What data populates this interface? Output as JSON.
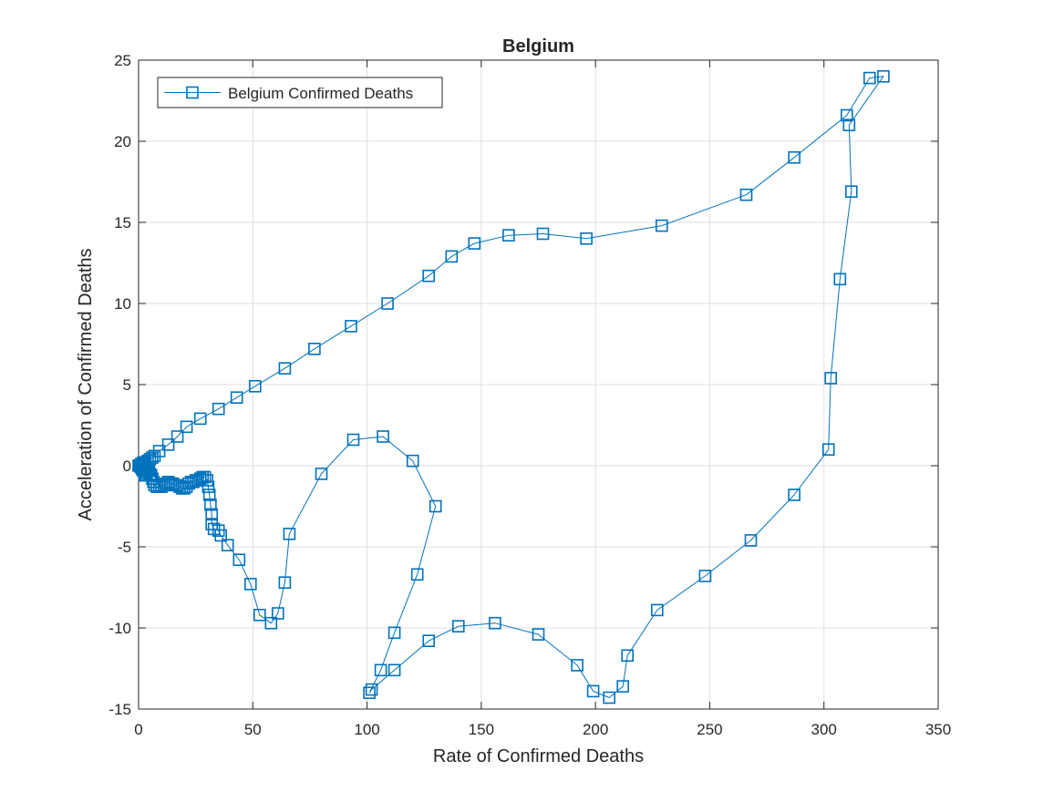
{
  "chart_data": {
    "type": "line",
    "title": "Belgium",
    "xlabel": "Rate of Confirmed Deaths",
    "ylabel": "Acceleration of Confirmed Deaths",
    "xlim": [
      0,
      350
    ],
    "ylim": [
      -15,
      25
    ],
    "xticks": [
      0,
      50,
      100,
      150,
      200,
      250,
      300,
      350
    ],
    "yticks": [
      -15,
      -10,
      -5,
      0,
      5,
      10,
      15,
      20,
      25
    ],
    "xtick_labels": [
      "0",
      "50",
      "100",
      "150",
      "200",
      "250",
      "300",
      "350"
    ],
    "ytick_labels": [
      "-15",
      "-10",
      "-5",
      "0",
      "5",
      "10",
      "15",
      "20",
      "25"
    ],
    "grid": true,
    "legend_position": "top-left",
    "series": [
      {
        "name": "Belgium Confirmed Deaths",
        "color": "#0072BD",
        "marker": "square",
        "points": [
          [
            0,
            0
          ],
          [
            0.5,
            0
          ],
          [
            1,
            0.1
          ],
          [
            1.5,
            0.1
          ],
          [
            2,
            0.2
          ],
          [
            2.5,
            0.1
          ],
          [
            3,
            0.2
          ],
          [
            4,
            0.3
          ],
          [
            5,
            0.4
          ],
          [
            6,
            0.5
          ],
          [
            7,
            0.6
          ],
          [
            9,
            0.9
          ],
          [
            13,
            1.3
          ],
          [
            17,
            1.8
          ],
          [
            21,
            2.4
          ],
          [
            27,
            2.9
          ],
          [
            35,
            3.5
          ],
          [
            43,
            4.2
          ],
          [
            51,
            4.9
          ],
          [
            64,
            6.0
          ],
          [
            77,
            7.2
          ],
          [
            93,
            8.6
          ],
          [
            109,
            10.0
          ],
          [
            127,
            11.7
          ],
          [
            137,
            12.9
          ],
          [
            147,
            13.7
          ],
          [
            162,
            14.2
          ],
          [
            177,
            14.3
          ],
          [
            196,
            14.0
          ],
          [
            229,
            14.8
          ],
          [
            266,
            16.7
          ],
          [
            287,
            19.0
          ],
          [
            310,
            21.6
          ],
          [
            320,
            23.9
          ],
          [
            326,
            24.0
          ],
          [
            311,
            21.0
          ],
          [
            312,
            16.9
          ],
          [
            307,
            11.5
          ],
          [
            303,
            5.4
          ],
          [
            302,
            1.0
          ],
          [
            287,
            -1.8
          ],
          [
            268,
            -4.6
          ],
          [
            248,
            -6.8
          ],
          [
            227,
            -8.9
          ],
          [
            214,
            -11.7
          ],
          [
            212,
            -13.6
          ],
          [
            206,
            -14.3
          ],
          [
            199,
            -13.9
          ],
          [
            192,
            -12.3
          ],
          [
            175,
            -10.4
          ],
          [
            156,
            -9.7
          ],
          [
            140,
            -9.9
          ],
          [
            127,
            -10.8
          ],
          [
            112,
            -12.6
          ],
          [
            102,
            -13.8
          ],
          [
            101,
            -14.0
          ],
          [
            106,
            -12.6
          ],
          [
            112,
            -10.3
          ],
          [
            122,
            -6.7
          ],
          [
            130,
            -2.5
          ],
          [
            120,
            0.3
          ],
          [
            107,
            1.8
          ],
          [
            94,
            1.6
          ],
          [
            80,
            -0.5
          ],
          [
            66,
            -4.2
          ],
          [
            64,
            -7.2
          ],
          [
            61,
            -9.1
          ],
          [
            58,
            -9.7
          ],
          [
            53,
            -9.2
          ],
          [
            49,
            -7.3
          ],
          [
            44,
            -5.8
          ],
          [
            39,
            -4.9
          ],
          [
            36,
            -4.3
          ],
          [
            35,
            -4.0
          ],
          [
            33,
            -3.9
          ],
          [
            32,
            -3.6
          ],
          [
            32,
            -3.0
          ],
          [
            31.5,
            -2.4
          ],
          [
            31,
            -1.8
          ],
          [
            30.5,
            -1.3
          ],
          [
            30,
            -0.9
          ],
          [
            29,
            -0.7
          ],
          [
            28,
            -0.7
          ],
          [
            27,
            -0.8
          ],
          [
            26,
            -0.9
          ],
          [
            25,
            -0.9
          ],
          [
            24,
            -1.0
          ],
          [
            23,
            -1.0
          ],
          [
            22,
            -1.1
          ],
          [
            21,
            -1.3
          ],
          [
            20,
            -1.4
          ],
          [
            19,
            -1.4
          ],
          [
            18,
            -1.3
          ],
          [
            17,
            -1.2
          ],
          [
            16,
            -1.2
          ],
          [
            15,
            -1.1
          ],
          [
            14,
            -1.1
          ],
          [
            13,
            -1.0
          ],
          [
            12,
            -1.1
          ],
          [
            11,
            -1.2
          ],
          [
            10,
            -1.3
          ],
          [
            9,
            -1.3
          ],
          [
            8,
            -1.3
          ],
          [
            7,
            -1.2
          ],
          [
            6.5,
            -1.0
          ],
          [
            6,
            -0.8
          ],
          [
            5.5,
            -0.6
          ],
          [
            5,
            -0.5
          ],
          [
            4.5,
            -0.3
          ],
          [
            4,
            -0.2
          ],
          [
            3.5,
            -0.4
          ],
          [
            3,
            -0.6
          ],
          [
            2.5,
            -0.5
          ],
          [
            2,
            -0.3
          ],
          [
            1.5,
            -0.2
          ],
          [
            1,
            -0.1
          ]
        ]
      }
    ]
  }
}
